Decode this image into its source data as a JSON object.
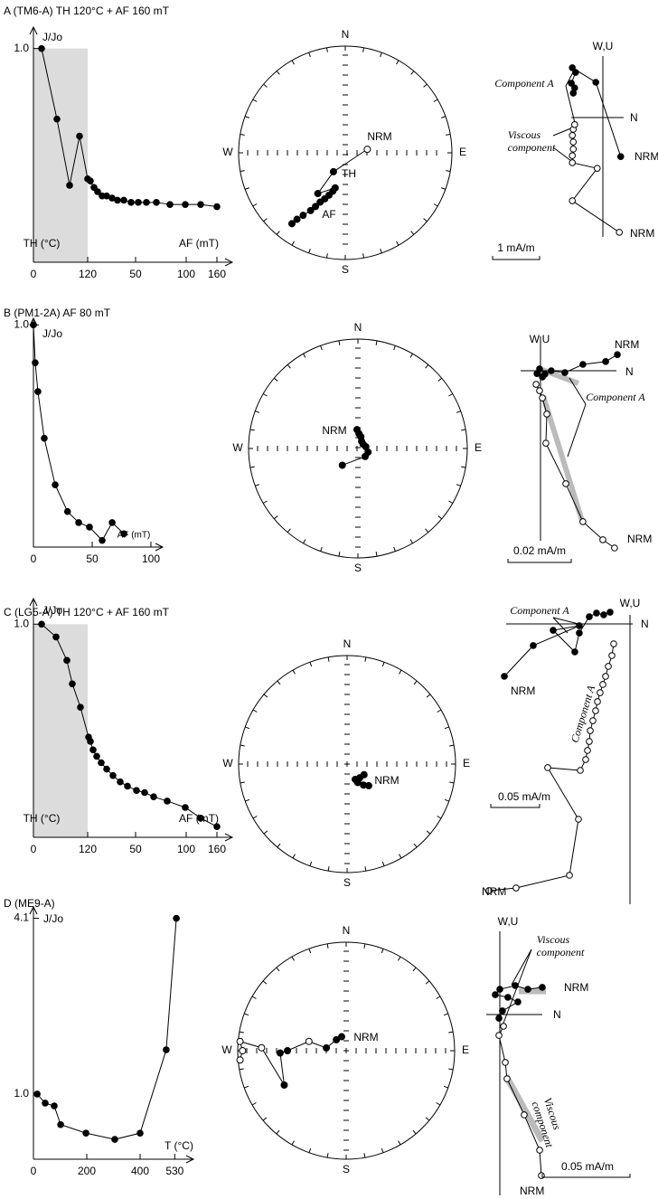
{
  "panels": [
    {
      "title": "A (TM6-A)  TH 120°C + AF 160 mT",
      "intensity": {
        "type": "line",
        "y_label": "J/Jo",
        "x_labels": [
          "TH (°C)",
          "AF (mT)"
        ],
        "x": [
          18,
          52,
          80,
          102,
          120,
          126,
          134,
          142,
          152,
          162,
          174,
          186,
          200,
          216,
          232,
          250,
          272,
          302,
          336,
          370,
          406
        ],
        "values": [
          1.0,
          0.67,
          0.36,
          0.59,
          0.39,
          0.38,
          0.35,
          0.33,
          0.31,
          0.31,
          0.3,
          0.29,
          0.29,
          0.28,
          0.28,
          0.28,
          0.28,
          0.27,
          0.27,
          0.27,
          0.26
        ],
        "xlim": [
          0,
          440
        ],
        "ylim": [
          0,
          1.1
        ],
        "xticks": [
          0,
          120,
          {
            "value": 226,
            "label": "50"
          },
          {
            "value": 338,
            "label": "100"
          },
          {
            "value": 406,
            "label": "160"
          }
        ],
        "yticks": [
          {
            "value": 1,
            "label": "1.0"
          }
        ],
        "shaded": true
      },
      "stereonet": {
        "type": "stereonet",
        "directions": [
          "N",
          "E",
          "S",
          "W"
        ],
        "labels": [
          "NRM",
          "TH",
          "AF"
        ],
        "declination": [
          81,
          212,
          214,
          196,
          198,
          201,
          204,
          207,
          209,
          211,
          214,
          216,
          217
        ],
        "inclination": [
          -73,
          73,
          52,
          62,
          59,
          55,
          51,
          47,
          42,
          37,
          30,
          24,
          18
        ]
      },
      "zijderveld": {
        "type": "zijderveld",
        "axis_labels": [
          "W,U",
          "N"
        ],
        "scale_bar": {
          "value": 1,
          "label": "1 mA/m"
        },
        "horizontal": {
          "x": [
            0.38,
            -0.15,
            -0.65,
            -0.58,
            -0.67,
            -0.6,
            -0.63
          ],
          "y": [
            -0.83,
            0.75,
            1.06,
            0.96,
            0.73,
            0.63,
            0.52
          ]
        },
        "vertical": {
          "x": [
            0.35,
            -0.65,
            -0.12,
            -0.65,
            -0.65,
            -0.63,
            -0.63,
            -0.65,
            -0.63,
            -0.6
          ],
          "y": [
            -2.44,
            -1.77,
            -1.08,
            -0.96,
            -0.81,
            -0.67,
            -0.52,
            -0.38,
            -0.25,
            -0.15
          ]
        },
        "annotations": [
          [
            "Component A"
          ],
          [
            "Viscous",
            "component"
          ]
        ],
        "end_labels": [
          "NRM",
          "NRM"
        ]
      }
    },
    {
      "title": "B (PM1-2A) AF 80 mT",
      "intensity": {
        "type": "line",
        "y_label": "J/Jo",
        "x_labels": [
          "AF (mT)"
        ],
        "x": [
          0,
          1.5,
          3.8,
          9.2,
          18.5,
          29,
          38.5,
          47.7,
          58.5,
          67,
          77
        ],
        "values": [
          1.0,
          0.83,
          0.7,
          0.49,
          0.28,
          0.16,
          0.11,
          0.09,
          0.03,
          0.11,
          0.06
        ],
        "xlim": [
          0,
          110
        ],
        "ylim": [
          0,
          1.03
        ],
        "xticks": [
          0,
          50,
          100
        ],
        "yticks": [
          {
            "value": 1,
            "label": "1.0"
          }
        ],
        "shaded": false
      },
      "stereonet": {
        "type": "stereonet",
        "directions": [
          "N",
          "E",
          "S",
          "W"
        ],
        "labels": [
          "NRM"
        ],
        "declination": [
          357,
          4,
          14,
          27,
          50,
          77,
          110,
          138,
          223
        ],
        "inclination": [
          76,
          79,
          81,
          84,
          85,
          84,
          82,
          82,
          73
        ]
      },
      "zijderveld": {
        "type": "zijderveld",
        "axis_labels": [
          "W,U",
          "N"
        ],
        "scale_bar": {
          "value": 0.02,
          "label": "0.02 mA/m"
        },
        "horizontal": {
          "x": [
            0.0243,
            0.0206,
            0.0134,
            0.0077,
            0.0034,
            0.0014,
            -0.0003,
            -0.0011,
            0.0006
          ],
          "y": [
            0.0051,
            0.0029,
            0.002,
            -0.0006,
            0,
            -0.0011,
            0.0006,
            -0.0009,
            -0.002
          ]
        },
        "vertical": {
          "x": [
            0.0234,
            0.0197,
            0.0134,
            0.008,
            0.0017,
            0.002,
            0.0006,
            -0.0003,
            -0.0014
          ],
          "y": [
            -0.056,
            -0.0534,
            -0.0477,
            -0.0357,
            -0.0229,
            -0.0137,
            -0.0086,
            -0.0063,
            -0.0043
          ]
        },
        "annotations": [
          [
            "Component A"
          ]
        ],
        "end_labels": [
          "NRM",
          "NRM"
        ]
      }
    },
    {
      "title": "C (LG5-A) TH 120°C + AF 160 mT",
      "intensity": {
        "type": "line",
        "y_label": "J/Jo",
        "x_labels": [
          "TH (°C)",
          "AF (mT)"
        ],
        "x": [
          18,
          50,
          74,
          86,
          104,
          122,
          126,
          132,
          140,
          150,
          162,
          176,
          192,
          208,
          228,
          246,
          266,
          296,
          336,
          370,
          406
        ],
        "values": [
          1.0,
          0.94,
          0.83,
          0.72,
          0.61,
          0.47,
          0.45,
          0.41,
          0.38,
          0.35,
          0.32,
          0.29,
          0.26,
          0.24,
          0.22,
          0.21,
          0.19,
          0.17,
          0.14,
          0.09,
          0.05
        ],
        "xlim": [
          0,
          440
        ],
        "ylim": [
          0,
          1.12
        ],
        "xticks": [
          0,
          120,
          {
            "value": 226,
            "label": "50"
          },
          {
            "value": 338,
            "label": "100"
          },
          {
            "value": 406,
            "label": "160"
          }
        ],
        "yticks": [
          {
            "value": 1,
            "label": "1.0"
          }
        ],
        "shaded": true
      },
      "stereonet": {
        "type": "stereonet",
        "directions": [
          "N",
          "E",
          "S",
          "W"
        ],
        "labels": [
          "NRM"
        ],
        "declination": [
          122,
          137,
          152,
          150,
          142,
          135
        ],
        "inclination": [
          75,
          76,
          77,
          74,
          70,
          67
        ]
      },
      "zijderveld": {
        "type": "zijderveld",
        "axis_labels": [
          "W,U",
          "N"
        ],
        "scale_bar": {
          "value": 0.05,
          "label": "0.05 mA/m"
        },
        "horizontal": {
          "x": [
            -0.1287,
            -0.0991,
            -0.0519,
            -0.0787,
            -0.0565,
            -0.0519,
            -0.0417,
            -0.0343,
            -0.0269,
            -0.0204
          ],
          "y": [
            -0.0537,
            -0.0222,
            -0.0019,
            -0.0065,
            -0.0287,
            -0.0093,
            0.0074,
            0.0111,
            0.0093,
            0.012
          ]
        },
        "vertical": {
          "x": [
            -0.1444,
            -0.1167,
            -0.062,
            -0.0528,
            -0.0843,
            -0.0509,
            -0.0454,
            -0.0435,
            -0.0417,
            -0.0407,
            -0.038,
            -0.0352,
            -0.0333,
            -0.0306,
            -0.0278,
            -0.025,
            -0.0222,
            -0.0185,
            -0.0167
          ],
          "y": [
            -0.2731,
            -0.2704,
            -0.2574,
            -0.2,
            -0.1472,
            -0.15,
            -0.1389,
            -0.1296,
            -0.1204,
            -0.1093,
            -0.0991,
            -0.0889,
            -0.0796,
            -0.0704,
            -0.062,
            -0.0537,
            -0.0435,
            -0.0324,
            -0.0204
          ]
        },
        "annotations": [
          [
            "Component A"
          ],
          [
            "Component A"
          ]
        ],
        "end_labels": [
          "NRM",
          "NRM"
        ]
      }
    },
    {
      "title": "D (ME9-A)",
      "intensity": {
        "type": "line",
        "y_label": "J/Jo",
        "x_labels": [
          "T (°C)"
        ],
        "x": [
          14,
          44,
          78,
          102,
          197,
          305,
          400,
          498,
          536
        ],
        "values": [
          1.0,
          0.84,
          0.79,
          0.46,
          0.31,
          0.2,
          0.31,
          1.78,
          4.1
        ],
        "xlim": [
          0,
          600
        ],
        "ylim": [
          -0.15,
          4.3
        ],
        "xticks": [
          0,
          200,
          400,
          530
        ],
        "yticks": [
          {
            "value": 1,
            "label": "1.0"
          },
          4.1
        ],
        "shaded": false
      },
      "stereonet": {
        "type": "stereonet",
        "directions": [
          "N",
          "E",
          "S",
          "W"
        ],
        "labels": [
          "NRM"
        ],
        "declination": [
          342,
          318,
          278,
          284,
          270,
          268,
          241,
          272,
          275,
          270,
          265
        ],
        "inclination": [
          79,
          79,
          75,
          -61,
          45,
          39,
          35,
          -23,
          -2,
          -5,
          -2
        ]
      },
      "zijderveld": {
        "type": "zijderveld",
        "axis_labels": [
          "W,U",
          "N"
        ],
        "scale_bar": {
          "value": 0.05,
          "label": "0.05 mA/m"
        },
        "horizontal": {
          "x": [
            0.0242,
            0.016,
            0.0088,
            0,
            -0.0026,
            0.0046,
            0.0103,
            0.0015,
            -0.0005
          ],
          "y": [
            0.0155,
            0.0144,
            0.0165,
            0.0144,
            0.0113,
            0.0098,
            0.0072,
            0.0021,
            -0.0021
          ]
        },
        "vertical": {
          "x": [
            0.0237,
            0.0227,
            0.0139,
            0.0041,
            0.0031,
            -0.0005,
            0.0021
          ],
          "y": [
            -0.0918,
            -0.0773,
            -0.0572,
            -0.0366,
            -0.0273,
            -0.0119,
            -0.0067
          ]
        },
        "annotations": [
          [
            "Viscous",
            "component"
          ],
          [
            "Viscous",
            "component"
          ]
        ],
        "end_labels": [
          "NRM",
          "NRM"
        ]
      }
    }
  ]
}
